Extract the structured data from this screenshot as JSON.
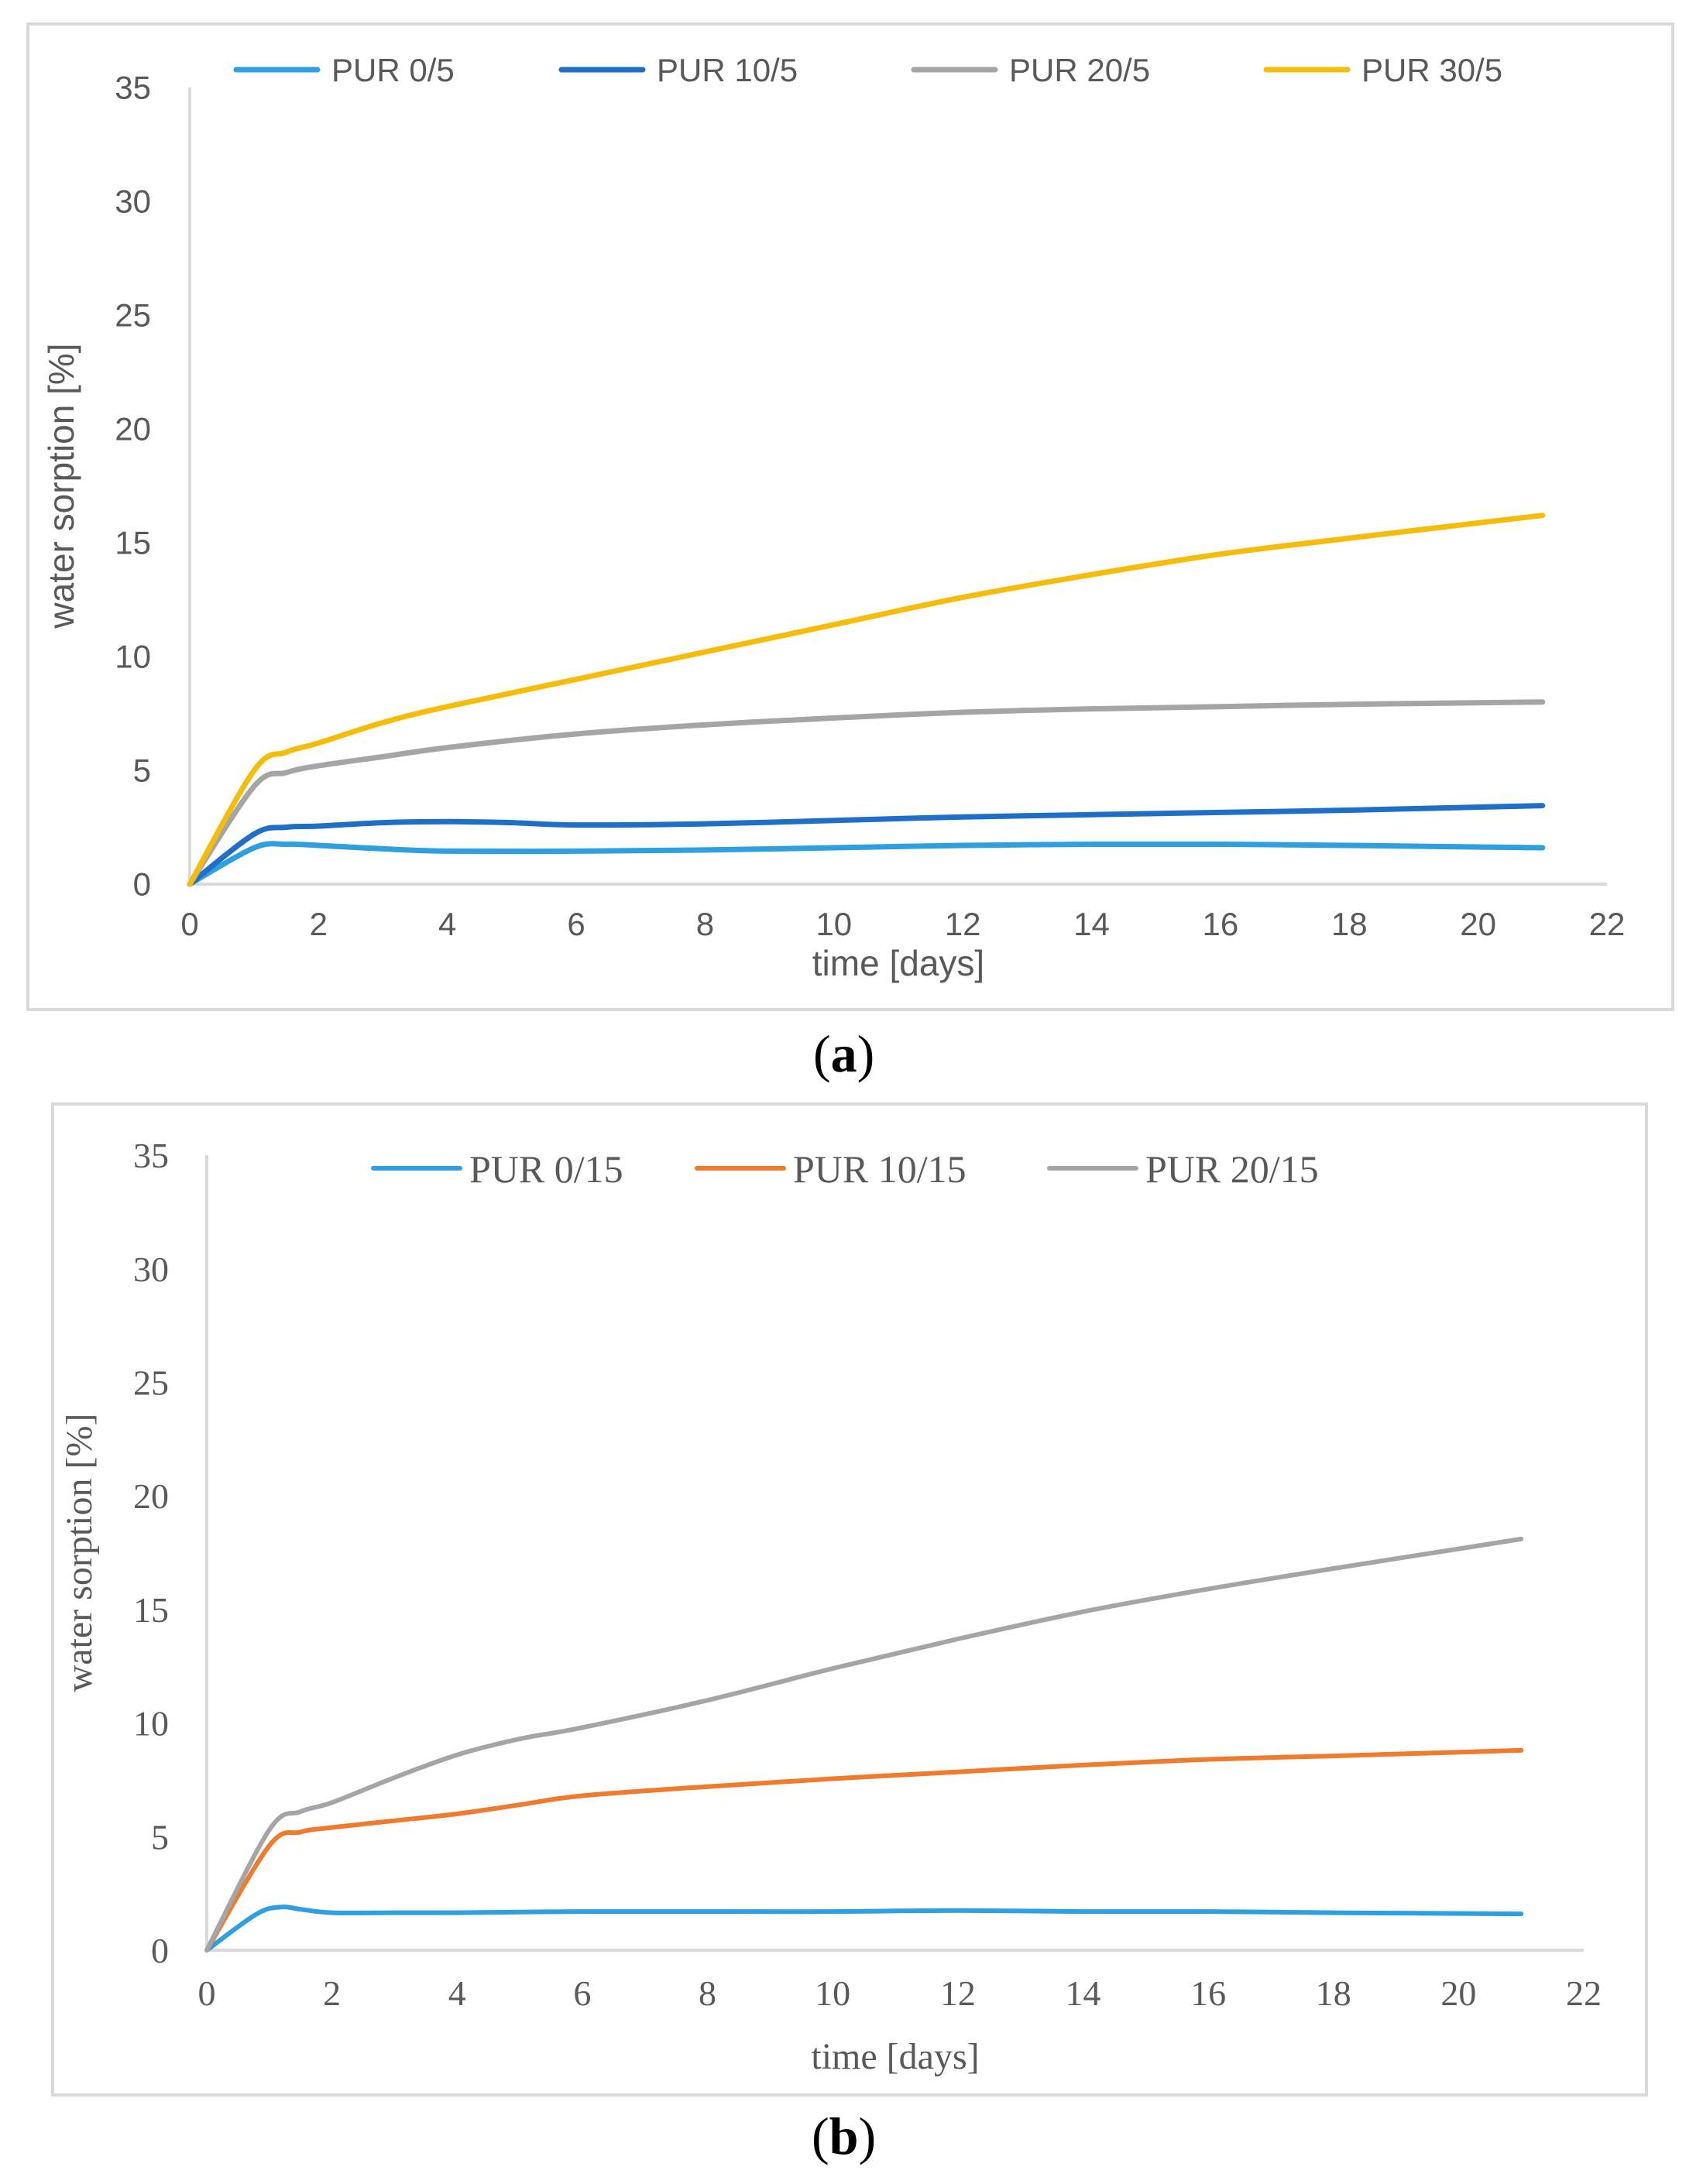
{
  "chart_data": [
    {
      "type": "line",
      "caption": "a",
      "xlabel": "time [days]",
      "ylabel": "water sorption [%]",
      "xlim": [
        0,
        22
      ],
      "ylim": [
        0,
        35
      ],
      "xticks": [
        0,
        2,
        4,
        6,
        8,
        10,
        12,
        14,
        16,
        18,
        20,
        22
      ],
      "yticks": [
        0,
        5,
        10,
        15,
        20,
        25,
        30,
        35
      ],
      "legend": "top",
      "series": [
        {
          "name": "PUR 0/5",
          "color": "#2e9fe0",
          "x": [
            0,
            1,
            1.5,
            2,
            3,
            4,
            6,
            8,
            10,
            12,
            14,
            16,
            18,
            21
          ],
          "y": [
            0,
            1.6,
            1.75,
            1.7,
            1.55,
            1.45,
            1.45,
            1.5,
            1.6,
            1.7,
            1.75,
            1.75,
            1.7,
            1.6
          ]
        },
        {
          "name": "PUR 10/5",
          "color": "#1f6fc9",
          "x": [
            0,
            1,
            1.5,
            2,
            3,
            4,
            5,
            6,
            8,
            10,
            12,
            14,
            16,
            18,
            21
          ],
          "y": [
            0,
            2.2,
            2.5,
            2.55,
            2.7,
            2.75,
            2.7,
            2.6,
            2.65,
            2.8,
            2.95,
            3.05,
            3.15,
            3.25,
            3.45
          ]
        },
        {
          "name": "PUR 20/5",
          "color": "#a5a5a5",
          "x": [
            0,
            1,
            1.5,
            2,
            3,
            4,
            6,
            8,
            10,
            12,
            14,
            16,
            18,
            21
          ],
          "y": [
            0,
            4.3,
            4.9,
            5.2,
            5.6,
            6.0,
            6.6,
            7.0,
            7.3,
            7.55,
            7.7,
            7.8,
            7.9,
            8.0
          ]
        },
        {
          "name": "PUR 30/5",
          "color": "#f5bd0a",
          "x": [
            0,
            1,
            1.5,
            2,
            3,
            4,
            6,
            8,
            10,
            12,
            14,
            16,
            18,
            21
          ],
          "y": [
            0,
            5.0,
            5.8,
            6.2,
            7.1,
            7.8,
            9.0,
            10.2,
            11.4,
            12.6,
            13.6,
            14.5,
            15.2,
            16.2
          ]
        }
      ]
    },
    {
      "type": "line",
      "caption": "b",
      "xlabel": "time [days]",
      "ylabel": "water sorption [%]",
      "xlim": [
        0,
        22
      ],
      "ylim": [
        0,
        35
      ],
      "xticks": [
        0,
        2,
        4,
        6,
        8,
        10,
        12,
        14,
        16,
        18,
        20,
        22
      ],
      "yticks": [
        0,
        5,
        10,
        15,
        20,
        25,
        30,
        35
      ],
      "legend": "top",
      "series": [
        {
          "name": "PUR 0/15",
          "color": "#2e9fe0",
          "x": [
            0,
            0.8,
            1.2,
            1.5,
            2,
            3,
            4,
            6,
            8,
            10,
            12,
            14,
            16,
            18,
            21
          ],
          "y": [
            0,
            1.6,
            1.9,
            1.8,
            1.65,
            1.65,
            1.65,
            1.7,
            1.7,
            1.7,
            1.75,
            1.7,
            1.7,
            1.65,
            1.6
          ]
        },
        {
          "name": "PUR 10/15",
          "color": "#f07a2e",
          "x": [
            0,
            1,
            1.5,
            2,
            3,
            4,
            5,
            6,
            8,
            10,
            12,
            14,
            16,
            18,
            21
          ],
          "y": [
            0,
            4.6,
            5.2,
            5.4,
            5.7,
            6.0,
            6.4,
            6.8,
            7.2,
            7.55,
            7.85,
            8.15,
            8.4,
            8.55,
            8.8
          ]
        },
        {
          "name": "PUR 20/15",
          "color": "#a5a5a5",
          "x": [
            0,
            1,
            1.5,
            2,
            3,
            4,
            5,
            6,
            8,
            10,
            12,
            14,
            16,
            18,
            21
          ],
          "y": [
            0,
            5.3,
            6.1,
            6.5,
            7.6,
            8.6,
            9.3,
            9.8,
            11.0,
            12.4,
            13.7,
            14.9,
            15.9,
            16.8,
            18.1
          ]
        }
      ]
    }
  ]
}
